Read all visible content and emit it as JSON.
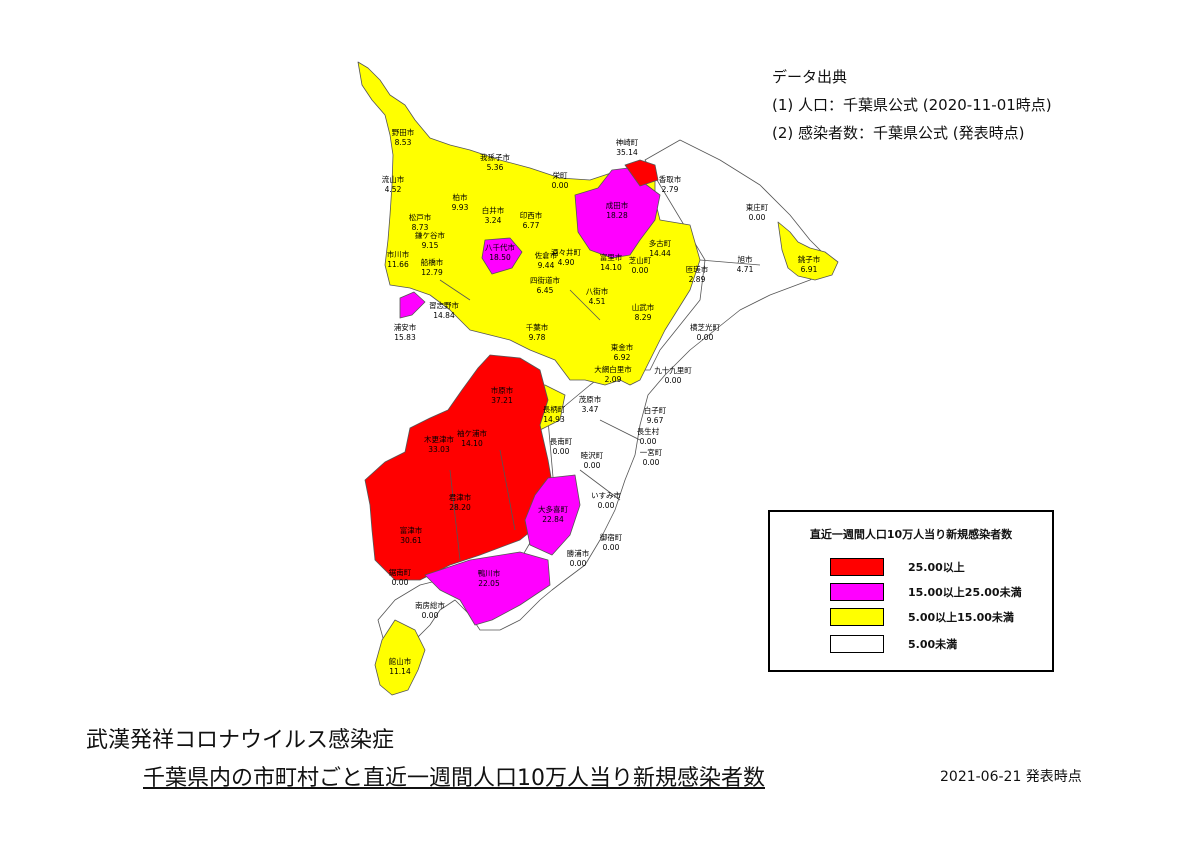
{
  "source": {
    "heading": "データ出典",
    "line1": "(1) 人口：千葉県公式 (2020-11-01時点)",
    "line2": "(2) 感染者数：千葉県公式 (発表時点)"
  },
  "legend": {
    "title": "直近一週間人口10万人当り新規感染者数",
    "items": [
      {
        "label": "25.00以上",
        "color": "#ff0000"
      },
      {
        "label": "15.00以上25.00未満",
        "color": "#ff00ff"
      },
      {
        "label": "5.00以上15.00未満",
        "color": "#ffff00"
      },
      {
        "label": "5.00未満",
        "color": "#ffffff"
      }
    ]
  },
  "title": {
    "line1": "武漢発祥コロナウイルス感染症",
    "line2": "千葉県内の市町村ごと直近一週間人口10万人当り新規感染者数"
  },
  "date": "2021-06-21 発表時点",
  "map": {
    "stroke_color": "#555555",
    "municipalities": [
      {
        "name": "野田市",
        "value": "8.53"
      },
      {
        "name": "我孫子市",
        "value": "5.36"
      },
      {
        "name": "神崎町",
        "value": "35.14"
      },
      {
        "name": "流山市",
        "value": "4.52"
      },
      {
        "name": "栄町",
        "value": "0.00"
      },
      {
        "name": "香取市",
        "value": "2.79"
      },
      {
        "name": "柏市",
        "value": "9.93"
      },
      {
        "name": "白井市",
        "value": "3.24"
      },
      {
        "name": "印西市",
        "value": "6.77"
      },
      {
        "name": "成田市",
        "value": "18.28"
      },
      {
        "name": "東庄町",
        "value": "0.00"
      },
      {
        "name": "松戸市",
        "value": "8.73"
      },
      {
        "name": "鎌ケ谷市",
        "value": "9.15"
      },
      {
        "name": "八千代市",
        "value": "18.50"
      },
      {
        "name": "多古町",
        "value": "14.44"
      },
      {
        "name": "市川市",
        "value": "11.66"
      },
      {
        "name": "船橋市",
        "value": "12.79"
      },
      {
        "name": "佐倉市",
        "value": "9.44"
      },
      {
        "name": "酒々井町",
        "value": "4.90"
      },
      {
        "name": "富里市",
        "value": "14.10"
      },
      {
        "name": "芝山町",
        "value": "0.00"
      },
      {
        "name": "匝瑳市",
        "value": "2.89"
      },
      {
        "name": "旭市",
        "value": "4.71"
      },
      {
        "name": "銚子市",
        "value": "6.91"
      },
      {
        "name": "四街道市",
        "value": "6.45"
      },
      {
        "name": "浦安市",
        "value": "15.83"
      },
      {
        "name": "習志野市",
        "value": "14.84"
      },
      {
        "name": "八街市",
        "value": "4.51"
      },
      {
        "name": "山武市",
        "value": "8.29"
      },
      {
        "name": "千葉市",
        "value": "9.78"
      },
      {
        "name": "横芝光町",
        "value": "0.00"
      },
      {
        "name": "東金市",
        "value": "6.92"
      },
      {
        "name": "大網白里市",
        "value": "2.09"
      },
      {
        "name": "九十九里町",
        "value": "0.00"
      },
      {
        "name": "市原市",
        "value": "37.21"
      },
      {
        "name": "長柄町",
        "value": "14.93"
      },
      {
        "name": "茂原市",
        "value": "3.47"
      },
      {
        "name": "白子町",
        "value": "9.67"
      },
      {
        "name": "袖ケ浦市",
        "value": "14.10"
      },
      {
        "name": "長生村",
        "value": "0.00"
      },
      {
        "name": "木更津市",
        "value": "33.03"
      },
      {
        "name": "長南町",
        "value": "0.00"
      },
      {
        "name": "一宮町",
        "value": "0.00"
      },
      {
        "name": "睦沢町",
        "value": "0.00"
      },
      {
        "name": "君津市",
        "value": "28.20"
      },
      {
        "name": "いすみ市",
        "value": "0.00"
      },
      {
        "name": "大多喜町",
        "value": "22.84"
      },
      {
        "name": "富津市",
        "value": "30.61"
      },
      {
        "name": "御宿町",
        "value": "0.00"
      },
      {
        "name": "勝浦市",
        "value": "0.00"
      },
      {
        "name": "鋸南町",
        "value": "0.00"
      },
      {
        "name": "鴨川市",
        "value": "22.05"
      },
      {
        "name": "南房総市",
        "value": "0.00"
      },
      {
        "name": "館山市",
        "value": "11.14"
      }
    ]
  }
}
